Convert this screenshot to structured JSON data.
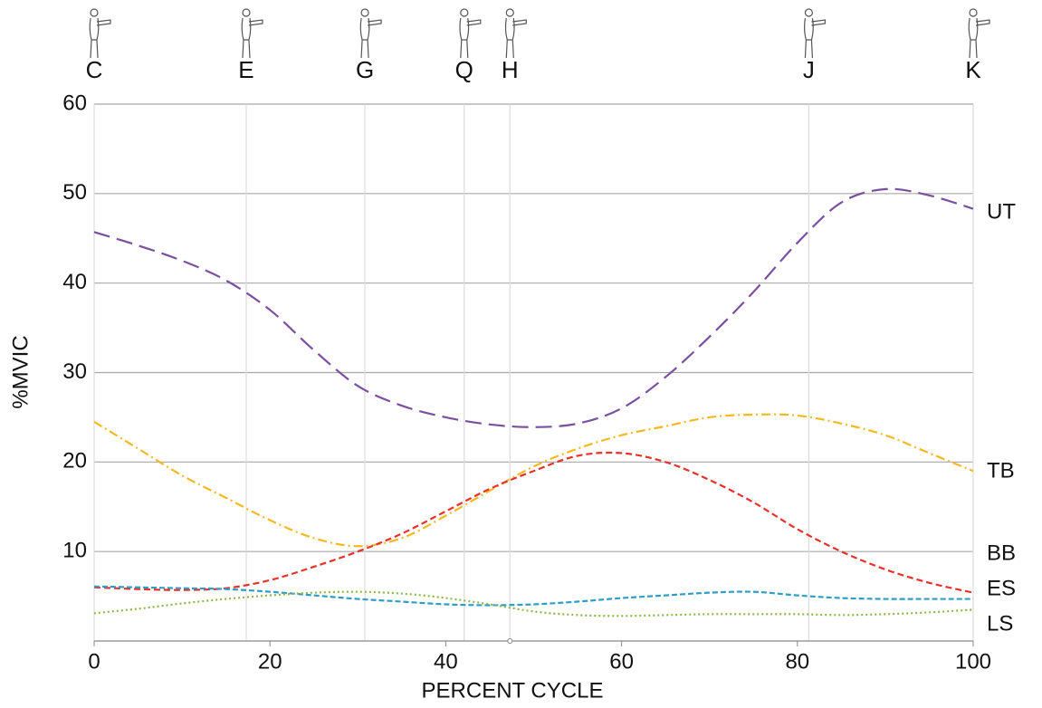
{
  "chart_data": {
    "type": "line",
    "x_label": "PERCENT CYCLE",
    "y_label": "%MVIC",
    "xlim": [
      0,
      100
    ],
    "xticks": [
      0,
      20,
      40,
      60,
      80,
      100
    ],
    "ylim": [
      0,
      60
    ],
    "yticks": [
      10,
      20,
      30,
      40,
      50,
      60
    ],
    "grid": true,
    "phases": [
      {
        "label": "C",
        "x": 0
      },
      {
        "label": "E",
        "x": 17.3
      },
      {
        "label": "G",
        "x": 30.8
      },
      {
        "label": "Q",
        "x": 42.1
      },
      {
        "label": "H",
        "x": 47.3
      },
      {
        "label": "J",
        "x": 81.3
      },
      {
        "label": "K",
        "x": 100
      }
    ],
    "x": [
      0,
      5,
      10,
      15,
      20,
      25,
      30,
      35,
      40,
      45,
      50,
      55,
      60,
      65,
      70,
      75,
      80,
      85,
      90,
      95,
      100
    ],
    "series": [
      {
        "name": "UT",
        "color": "#7b4fa0",
        "values": [
          45.7,
          44.2,
          42.5,
          40.3,
          37,
          32.5,
          28.5,
          26.3,
          25,
          24.2,
          23.9,
          24.3,
          26,
          29.5,
          34,
          39,
          44.5,
          49,
          50.5,
          49.8,
          48.3
        ]
      },
      {
        "name": "TB",
        "color": "#f5b820",
        "values": [
          24.5,
          21.5,
          18.5,
          16,
          13.5,
          11.5,
          10.6,
          11.5,
          14,
          16.8,
          19.5,
          21.5,
          23,
          24,
          25,
          25.3,
          25.2,
          24.3,
          23,
          21,
          19
        ]
      },
      {
        "name": "BB",
        "color": "#e8312a",
        "values": [
          6,
          5.8,
          5.7,
          5.9,
          6.8,
          8.3,
          10,
          12,
          14.5,
          17,
          19,
          20.7,
          21,
          20,
          18,
          15.5,
          12.5,
          10,
          8,
          6.5,
          5.4
        ]
      },
      {
        "name": "ES",
        "color": "#2e9ec8",
        "values": [
          6.1,
          6,
          5.9,
          5.8,
          5.5,
          5.1,
          4.7,
          4.4,
          4.1,
          4,
          4.1,
          4.4,
          4.8,
          5.1,
          5.4,
          5.5,
          5.1,
          4.8,
          4.7,
          4.7,
          4.7
        ]
      },
      {
        "name": "LS",
        "color": "#8cb84a",
        "values": [
          3.1,
          3.6,
          4.2,
          4.7,
          5.1,
          5.4,
          5.5,
          5.3,
          4.8,
          4.1,
          3.3,
          2.9,
          2.8,
          2.9,
          3,
          3,
          3,
          2.9,
          3,
          3.2,
          3.5
        ]
      }
    ]
  }
}
